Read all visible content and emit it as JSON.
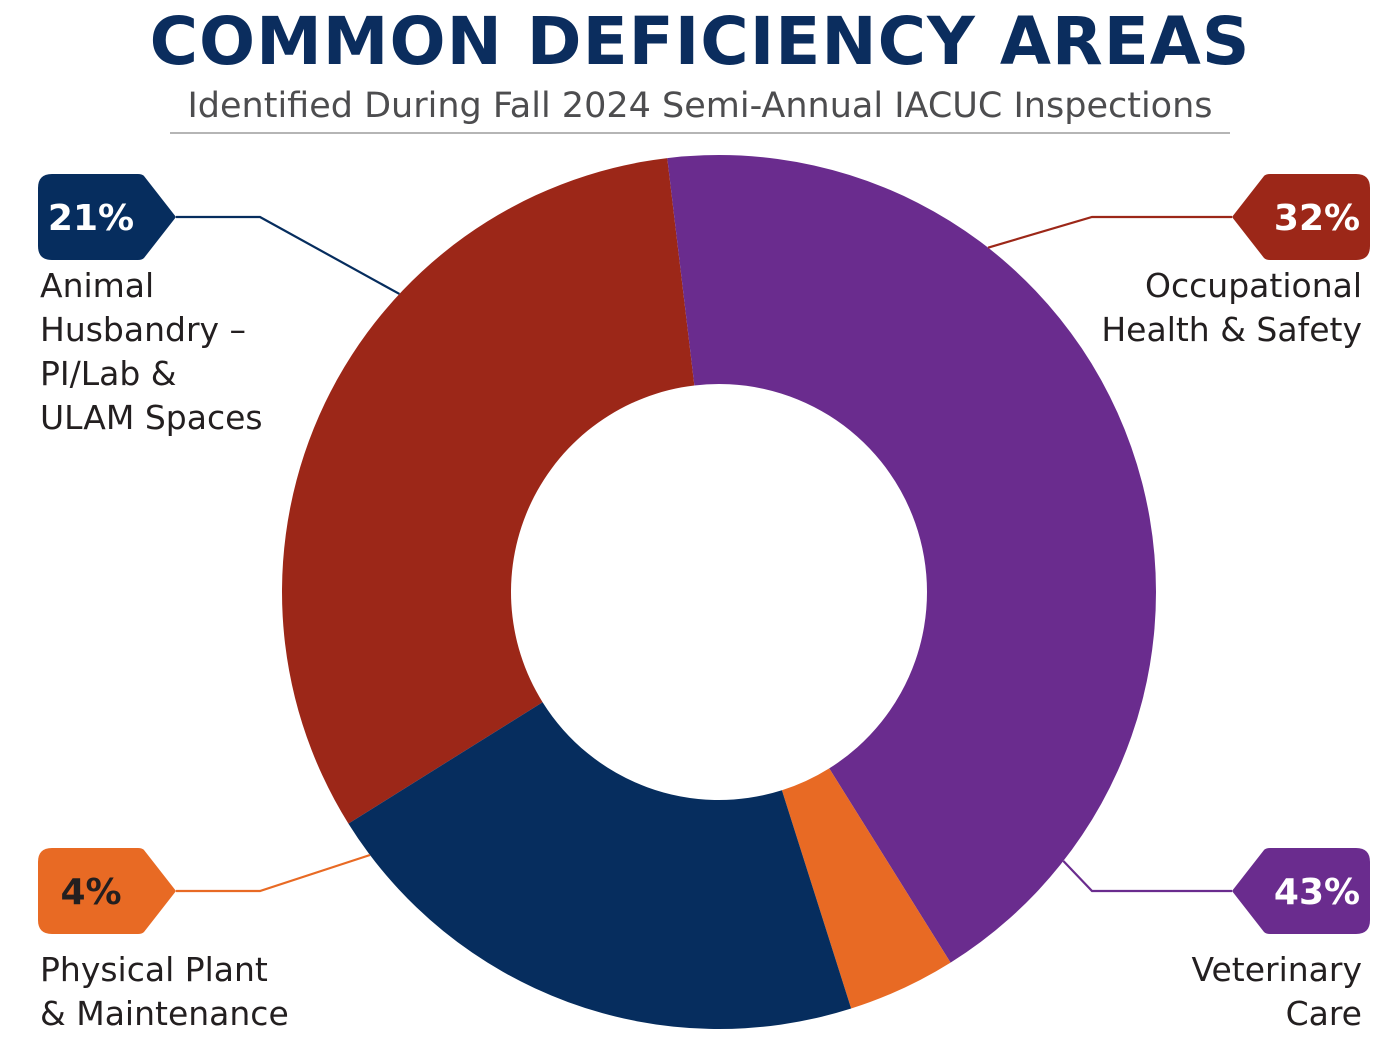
{
  "header": {
    "title": "COMMON DEFICIENCY AREAS",
    "subtitle": "Identified During Fall 2024 Semi-Annual IACUC Inspections"
  },
  "chart_data": {
    "type": "pie",
    "title": "COMMON DEFICIENCY AREAS",
    "subtitle": "Identified During Fall 2024 Semi-Annual IACUC Inspections",
    "donut": true,
    "slices": [
      {
        "label": "Occupational Health & Safety",
        "value": 32,
        "display": "32%",
        "color": "#9c2718",
        "badge_text_color": "#ffffff"
      },
      {
        "label": "Veterinary Care",
        "value": 43,
        "display": "43%",
        "color": "#6a2c8e",
        "badge_text_color": "#ffffff"
      },
      {
        "label": "Physical Plant & Maintenance",
        "value": 4,
        "display": "4%",
        "color": "#e86a24",
        "badge_text_color": "#231f20"
      },
      {
        "label": "Animal Husbandry – PI/Lab & ULAM Spaces",
        "value": 21,
        "display": "21%",
        "color": "#062d5e",
        "badge_text_color": "#ffffff"
      }
    ]
  },
  "labels": {
    "husbandry": "Animal\nHusbandry –\nPI/Lab &\nULAM Spaces",
    "occupational": "Occupational\nHealth & Safety",
    "physical": "Physical Plant\n& Maintenance",
    "veterinary": "Veterinary\nCare"
  }
}
